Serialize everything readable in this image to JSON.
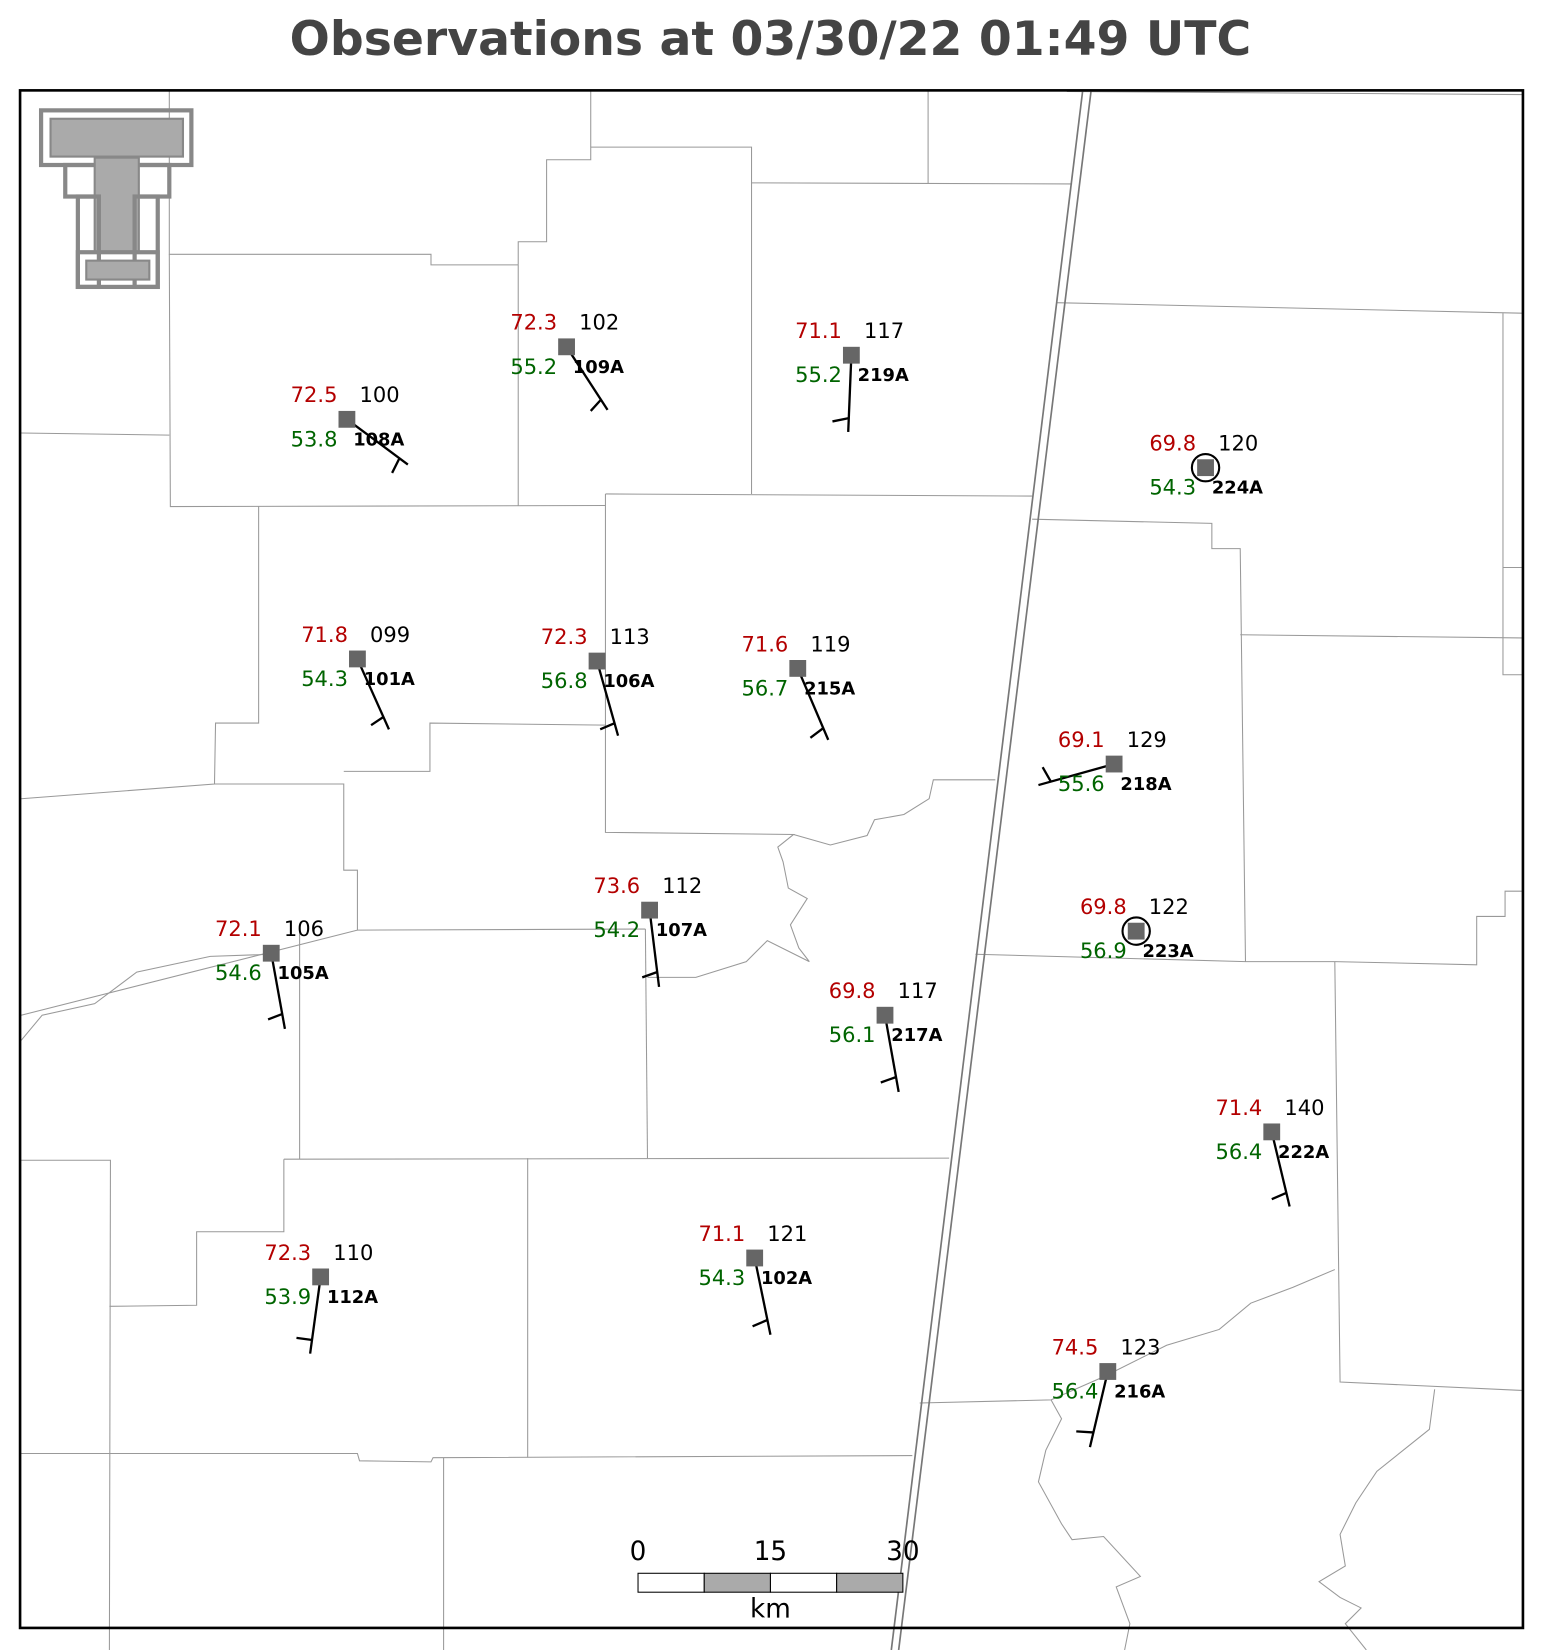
{
  "title": "Observations at 03/30/22 01:49 UTC",
  "stations": [
    {
      "id": "108A",
      "temperature": 72.5,
      "dewpoint": 53.8,
      "pressure": "100"
    },
    {
      "id": "109A",
      "temperature": 72.3,
      "dewpoint": 55.2,
      "pressure": "102"
    },
    {
      "id": "219A",
      "temperature": 71.1,
      "dewpoint": 55.2,
      "pressure": "117"
    },
    {
      "id": "224A",
      "temperature": 69.8,
      "dewpoint": 54.3,
      "pressure": "120"
    },
    {
      "id": "101A",
      "temperature": 71.8,
      "dewpoint": 54.3,
      "pressure": "099"
    },
    {
      "id": "106A",
      "temperature": 72.3,
      "dewpoint": 56.8,
      "pressure": "113"
    },
    {
      "id": "215A",
      "temperature": 71.6,
      "dewpoint": 56.7,
      "pressure": "119"
    },
    {
      "id": "218A",
      "temperature": 69.1,
      "dewpoint": 55.6,
      "pressure": "129"
    },
    {
      "id": "223A",
      "temperature": 69.8,
      "dewpoint": 56.9,
      "pressure": "122"
    },
    {
      "id": "107A",
      "temperature": 73.6,
      "dewpoint": 54.2,
      "pressure": "112"
    },
    {
      "id": "105A",
      "temperature": 72.1,
      "dewpoint": 54.6,
      "pressure": "106"
    },
    {
      "id": "217A",
      "temperature": 69.8,
      "dewpoint": 56.1,
      "pressure": "117"
    },
    {
      "id": "222A",
      "temperature": 71.4,
      "dewpoint": 56.4,
      "pressure": "140"
    },
    {
      "id": "112A",
      "temperature": 72.3,
      "dewpoint": 53.9,
      "pressure": "110"
    },
    {
      "id": "102A",
      "temperature": 71.1,
      "dewpoint": 54.3,
      "pressure": "121"
    },
    {
      "id": "216A",
      "temperature": 74.5,
      "dewpoint": 56.4,
      "pressure": "123"
    }
  ],
  "scale_bar": {
    "labels": [
      "0",
      "15",
      "30"
    ],
    "unit": "km"
  }
}
